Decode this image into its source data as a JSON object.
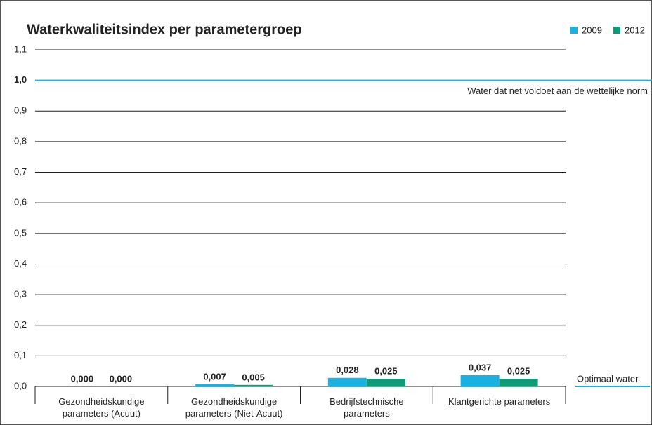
{
  "chart_data": {
    "type": "bar",
    "title": "Waterkwaliteitsindex per parametergroep",
    "categories": [
      "Gezondheidskundige parameters (Acuut)",
      "Gezondheidskundige parameters (Niet-Acuut)",
      "Bedrijfstechnische parameters",
      "Klantgerichte parameters"
    ],
    "series": [
      {
        "name": "2009",
        "color": "#1ab0e0",
        "values": [
          0,
          0.007,
          0.028,
          0.037
        ],
        "value_labels": [
          "0,000",
          "0,007",
          "0,028",
          "0,037"
        ]
      },
      {
        "name": "2012",
        "color": "#0f9a78",
        "values": [
          0,
          0.005,
          0.025,
          0.025
        ],
        "value_labels": [
          "0,000",
          "0,005",
          "0,025",
          "0,025"
        ]
      }
    ],
    "ylim": [
      0,
      1.1
    ],
    "yticks": [
      {
        "value": 0,
        "label": "0,0"
      },
      {
        "value": 0.1,
        "label": "0,1"
      },
      {
        "value": 0.2,
        "label": "0,2"
      },
      {
        "value": 0.3,
        "label": "0,3"
      },
      {
        "value": 0.4,
        "label": "0,4"
      },
      {
        "value": 0.5,
        "label": "0,5"
      },
      {
        "value": 0.6,
        "label": "0,6"
      },
      {
        "value": 0.7,
        "label": "0,7"
      },
      {
        "value": 0.8,
        "label": "0,8"
      },
      {
        "value": 0.9,
        "label": "0,9"
      },
      {
        "value": 1,
        "label": "1,0"
      },
      {
        "value": 1.1,
        "label": "1,1"
      }
    ],
    "grid": true,
    "legend": "top-right",
    "reference_line": {
      "value": 1,
      "label": "Water dat net voldoet aan de wettelijke norm",
      "color": "#1ab0e0"
    },
    "baseline_annotation": "Optimaal water"
  }
}
